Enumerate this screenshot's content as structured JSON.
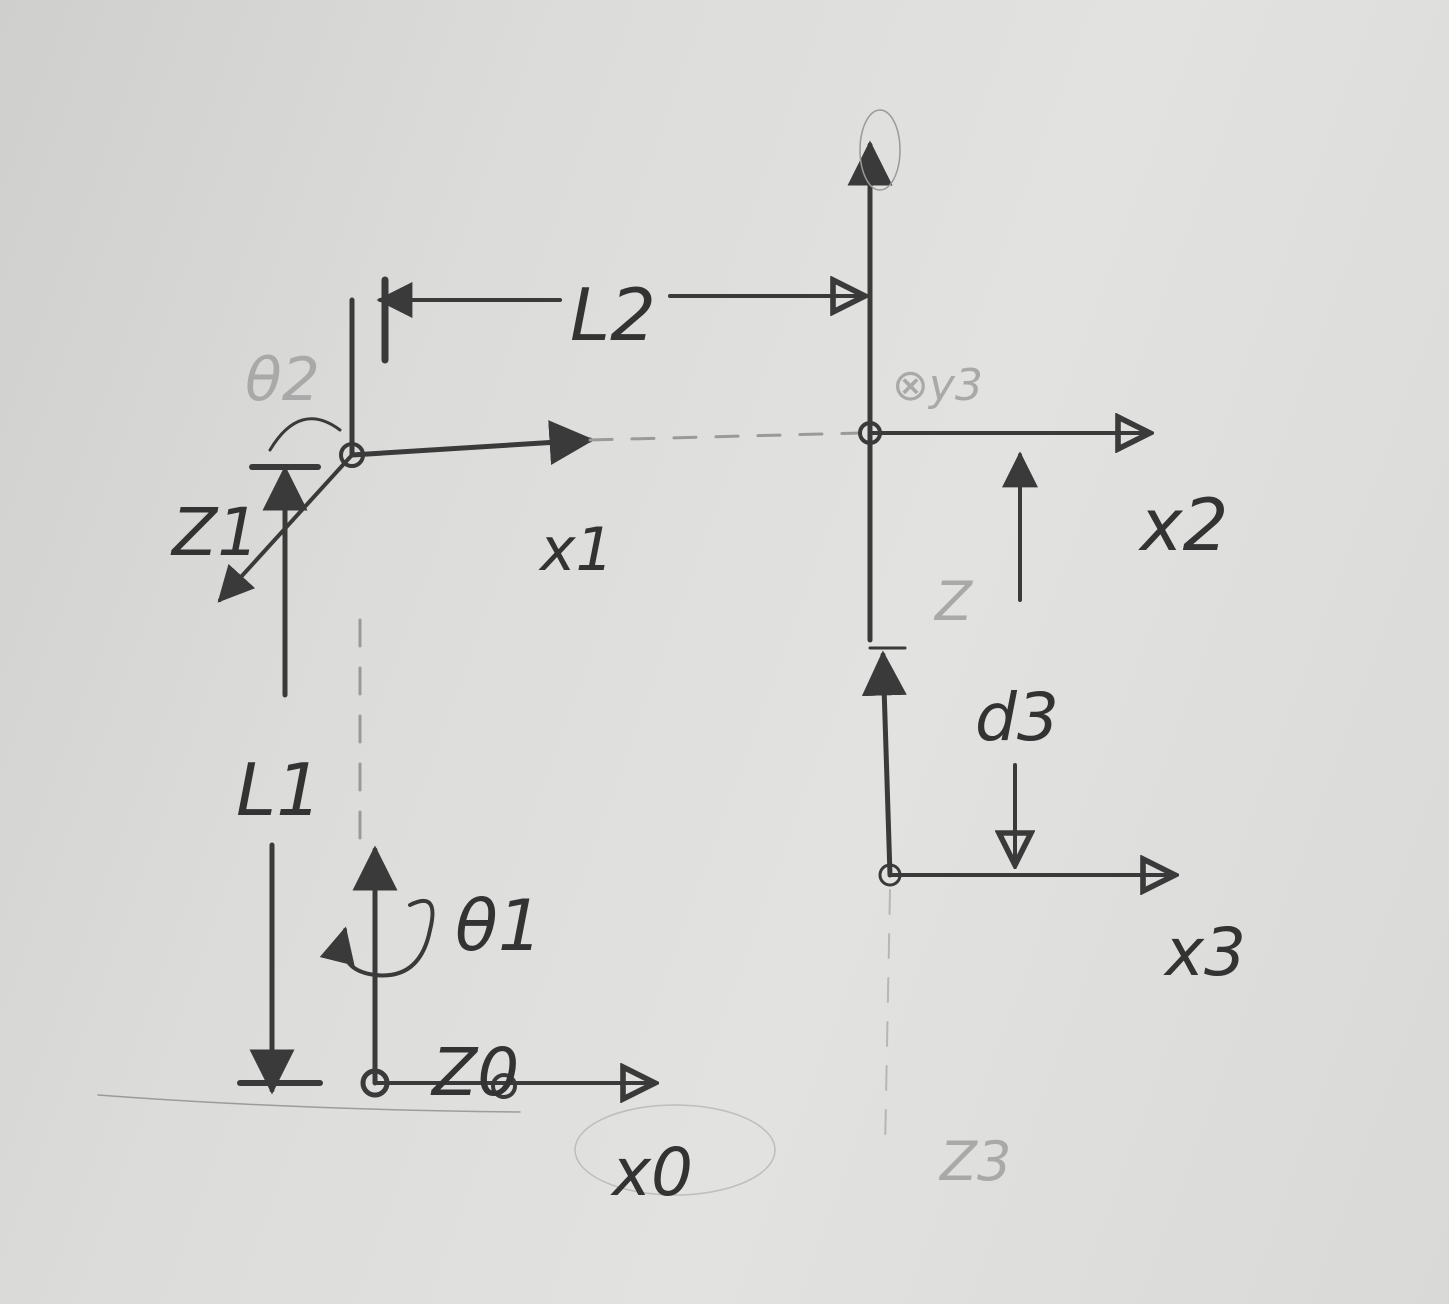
{
  "labels": {
    "L1": "L1",
    "L2": "L2",
    "theta1": "θ1",
    "theta2": "θ2",
    "z0": "Z0",
    "x0": "x0",
    "z1": "Z1",
    "x1": "x1",
    "x2": "x2",
    "y3": "⊗y3",
    "z_faint": "Z",
    "d3": "d3",
    "x3": "x3",
    "z3_faint": "Z3"
  },
  "colors": {
    "ink": "#3a3a3a",
    "paper": "#dcdcda"
  }
}
